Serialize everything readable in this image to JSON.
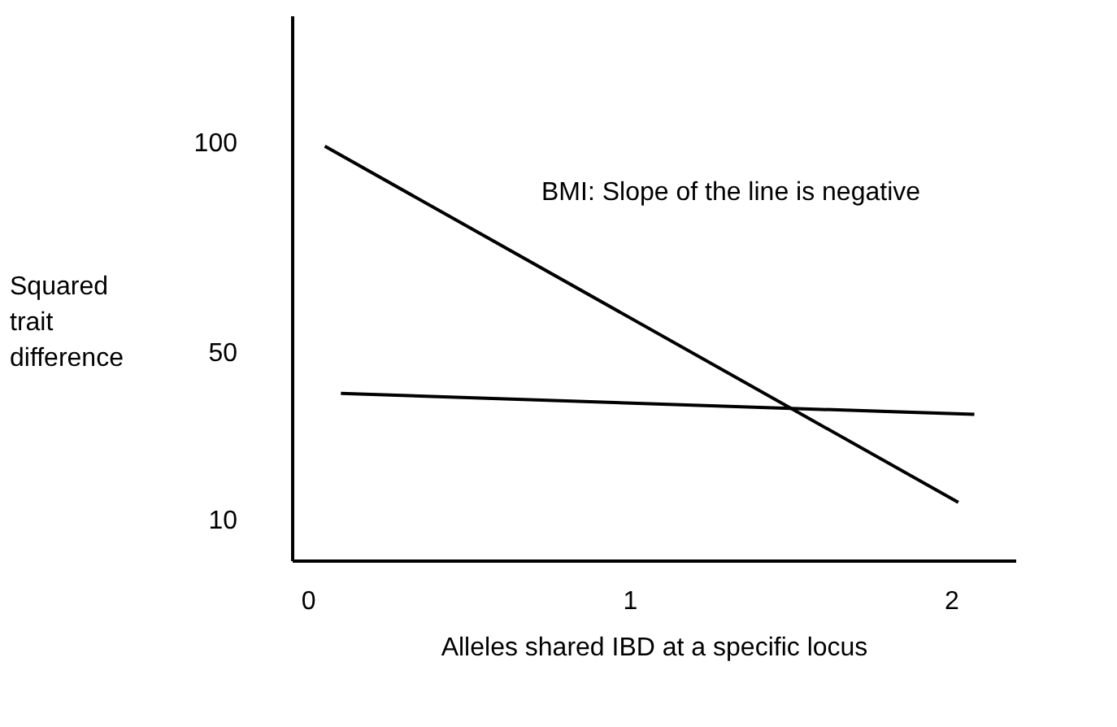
{
  "chart_data": {
    "type": "line",
    "xlabel": "Alleles shared IBD at a specific locus",
    "ylabel": "Squared trait difference",
    "annotations": [
      "BMI: Slope of the line is negative"
    ],
    "xlim": [
      -0.05,
      2.2
    ],
    "xticks": [
      0,
      1,
      2
    ],
    "ylim": [
      0,
      130
    ],
    "yticks": [
      10,
      50,
      100
    ],
    "grid": false,
    "legend": false,
    "marker": "none",
    "line_style": "solid",
    "series": [
      {
        "color": "#000000",
        "x": [
          0.05,
          2.02
        ],
        "values": [
          99,
          14
        ]
      },
      {
        "color": "#000000",
        "x": [
          0.1,
          2.07
        ],
        "values": [
          40,
          35
        ]
      }
    ]
  }
}
